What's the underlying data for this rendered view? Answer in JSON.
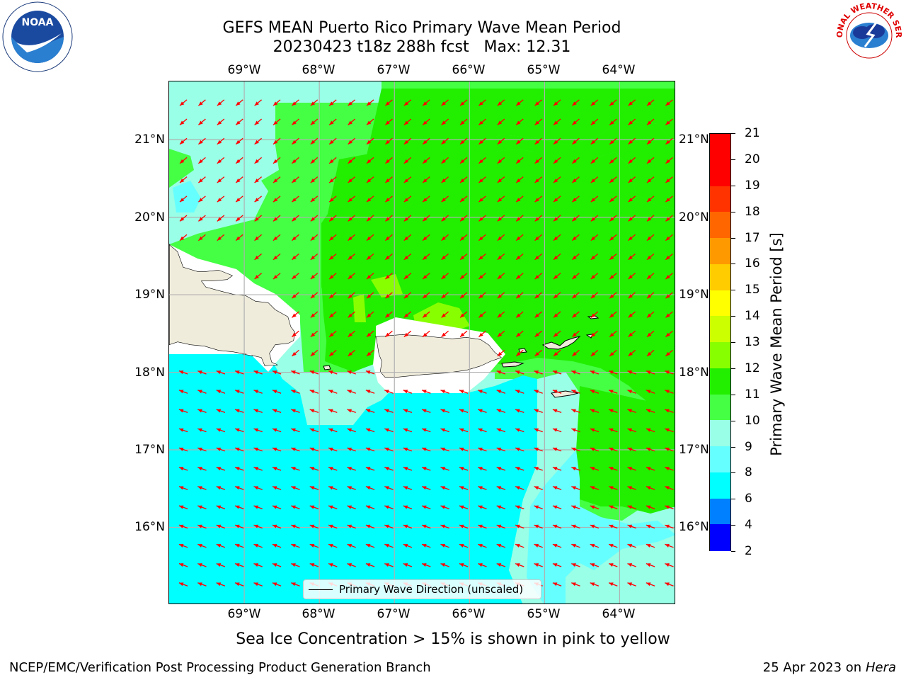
{
  "header": {
    "title_line1": "GEFS MEAN Puerto Rico Primary Wave Mean Period",
    "title_line2": "20230423 t18z 288h fcst   Max: 12.31"
  },
  "logos": {
    "noaa": {
      "text": "NOAA",
      "ring_text": "NATIONAL OCEANIC AND ATMOSPHERIC ADMINISTRATION",
      "ring_text_bottom": "U.S. DEPARTMENT OF COMMERCE"
    },
    "nws": {
      "ring_text": "NATIONAL WEATHER SERVICE"
    }
  },
  "map": {
    "lon_labels": [
      "69°W",
      "68°W",
      "67°W",
      "66°W",
      "65°W",
      "64°W"
    ],
    "lat_labels": [
      "21°N",
      "20°N",
      "19°N",
      "18°N",
      "17°N",
      "16°N"
    ],
    "lon_range": [
      -70.0,
      -63.25
    ],
    "lat_range": [
      15.0,
      21.75
    ],
    "wave_direction_arrows": "toward south-west (red)",
    "arrow_color": "#ff0000",
    "land_color": "#efecdc",
    "legend_label": "Primary Wave Direction (unscaled)"
  },
  "colorbar": {
    "title": "Primary Wave Mean Period [s]",
    "tick_labels": [
      "2",
      "4",
      "6",
      "8",
      "9",
      "10",
      "11",
      "12",
      "13",
      "14",
      "15",
      "16",
      "17",
      "18",
      "19",
      "20",
      "21"
    ],
    "colors": [
      "#0000ff",
      "#0080ff",
      "#00ffff",
      "#66ffff",
      "#99ffe6",
      "#44ff44",
      "#22ee00",
      "#88ff00",
      "#ccff00",
      "#ffff00",
      "#ffcc00",
      "#ff9900",
      "#ff6600",
      "#ff3300",
      "#ff0000",
      "#ff0000"
    ]
  },
  "note": "Sea Ice Concentration > 15% is shown in pink to yellow",
  "footer": {
    "left": "NCEP/EMC/Verification Post Processing Product Generation Branch",
    "right_prefix": "25 Apr 2023 on ",
    "right_host": "Hera"
  }
}
